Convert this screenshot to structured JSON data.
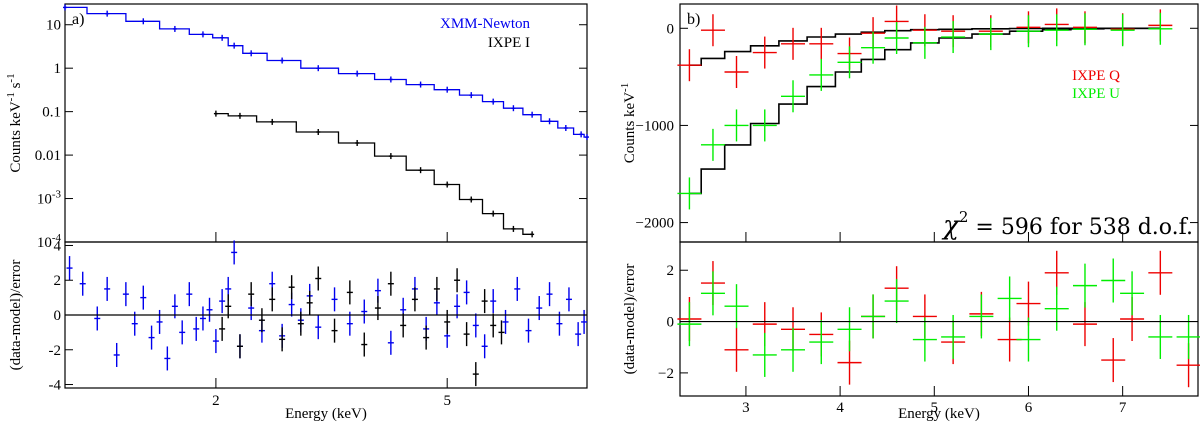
{
  "chart_data": [
    {
      "id": "a",
      "type": "line",
      "panel_label": "a)",
      "xscale": "log",
      "xlim": [
        1.1,
        8.7
      ],
      "xticks": [
        {
          "v": 2,
          "label": "2"
        },
        {
          "v": 5,
          "label": "5"
        }
      ],
      "xlabel": "Energy (keV)",
      "top": {
        "yscale": "log",
        "ylim": [
          0.0001,
          30
        ],
        "ylabel": "Counts keV-1 s-1",
        "yticks": [
          {
            "v": 10,
            "label": "10"
          },
          {
            "v": 1,
            "label": "1"
          },
          {
            "v": 0.1,
            "label": "0.1"
          },
          {
            "v": 0.01,
            "label": "0.01"
          },
          {
            "v": 0.001,
            "label": "10-3"
          },
          {
            "v": 0.0001,
            "label": "10-4"
          }
        ],
        "legend": [
          {
            "label": "XMM-Newton",
            "color": "#0000ee"
          },
          {
            "label": "IXPE I",
            "color": "#000000"
          }
        ],
        "series": [
          {
            "name": "XMM-Newton",
            "color": "#0000ee",
            "x": [
              1.1,
              1.3,
              1.5,
              1.7,
              1.9,
              2.05,
              2.15,
              2.3,
              2.6,
              3.0,
              3.5,
              4.0,
              4.5,
              5.0,
              5.5,
              6.0,
              6.5,
              7.0,
              7.5,
              8.0,
              8.5,
              8.7
            ],
            "y": [
              25,
              18,
              12,
              8,
              6,
              5.0,
              3.3,
              2.2,
              1.5,
              1.0,
              0.75,
              0.55,
              0.42,
              0.32,
              0.24,
              0.17,
              0.12,
              0.085,
              0.06,
              0.042,
              0.03,
              0.026
            ]
          },
          {
            "name": "IXPE I",
            "color": "#000000",
            "x": [
              2.0,
              2.2,
              2.5,
              3.0,
              3.5,
              4.0,
              4.5,
              5.0,
              5.5,
              6.0,
              6.5,
              7.0
            ],
            "y": [
              0.09,
              0.08,
              0.058,
              0.034,
              0.019,
              0.0095,
              0.0045,
              0.0021,
              0.00095,
              0.00045,
              0.0002,
              0.00015
            ]
          }
        ]
      },
      "bottom": {
        "ylim": [
          -4.2,
          4.2
        ],
        "ylabel": "(data-model)/error",
        "yticks": [
          {
            "v": 4,
            "label": "4"
          },
          {
            "v": 2,
            "label": "2"
          },
          {
            "v": 0,
            "label": "0"
          },
          {
            "v": -2,
            "label": "-2"
          },
          {
            "v": -4,
            "label": "-4"
          }
        ],
        "series": [
          {
            "name": "XMM-Newton residuals",
            "color": "#0000ee",
            "x": [
              1.12,
              1.18,
              1.25,
              1.3,
              1.35,
              1.4,
              1.45,
              1.5,
              1.55,
              1.6,
              1.65,
              1.7,
              1.75,
              1.8,
              1.85,
              1.9,
              1.95,
              2.0,
              2.05,
              2.1,
              2.15,
              2.2,
              2.3,
              2.4,
              2.5,
              2.6,
              2.7,
              2.8,
              2.9,
              3.0,
              3.2,
              3.4,
              3.6,
              3.8,
              4.0,
              4.2,
              4.4,
              4.6,
              4.8,
              5.0,
              5.2,
              5.4,
              5.6,
              5.8,
              6.0,
              6.3,
              6.6,
              6.9,
              7.2,
              7.5,
              7.8,
              8.1,
              8.4,
              8.6
            ],
            "y": [
              2.7,
              1.8,
              -0.2,
              1.5,
              -2.3,
              1.2,
              -0.5,
              1.0,
              -1.3,
              -0.4,
              -2.5,
              0.5,
              -1.0,
              1.2,
              -0.8,
              -0.2,
              0.3,
              -1.5,
              0.8,
              1.5,
              3.6,
              -1.8,
              0.4,
              -0.9,
              1.8,
              -1.2,
              0.6,
              -0.3,
              1.1,
              -0.7,
              0.9,
              -0.5,
              0.2,
              1.4,
              -1.6,
              0.3,
              1.5,
              -0.8,
              0.7,
              -1.2,
              0.5,
              1.3,
              -0.6,
              -1.8,
              0.8,
              -0.4,
              1.5,
              -0.9,
              0.4,
              1.2,
              -0.5,
              0.9,
              -1.1,
              -0.4
            ]
          },
          {
            "name": "IXPE I residuals",
            "color": "#000000",
            "x": [
              2.05,
              2.1,
              2.2,
              2.3,
              2.4,
              2.5,
              2.6,
              2.7,
              2.8,
              2.9,
              3.0,
              3.2,
              3.4,
              3.6,
              3.8,
              4.0,
              4.2,
              4.4,
              4.6,
              4.8,
              5.0,
              5.2,
              5.4,
              5.6,
              5.8,
              6.0,
              6.2
            ],
            "y": [
              -0.8,
              0.5,
              -1.8,
              1.2,
              -0.3,
              0.9,
              -1.4,
              1.6,
              -0.5,
              0.7,
              2.1,
              -0.9,
              1.3,
              -1.7,
              0.4,
              1.8,
              -0.6,
              0.9,
              -1.3,
              1.5,
              -0.4,
              2.0,
              -1.1,
              -3.4,
              0.8,
              -0.6,
              -1.0
            ]
          }
        ]
      }
    },
    {
      "id": "b",
      "type": "line",
      "panel_label": "b)",
      "xscale": "linear",
      "xlim": [
        2.3,
        7.8
      ],
      "xticks": [
        {
          "v": 3,
          "label": "3"
        },
        {
          "v": 4,
          "label": "4"
        },
        {
          "v": 5,
          "label": "5"
        },
        {
          "v": 6,
          "label": "6"
        },
        {
          "v": 7,
          "label": "7"
        }
      ],
      "xlabel": "Energy (keV)",
      "top": {
        "yscale": "linear",
        "ylim": [
          -2200,
          250
        ],
        "ylabel": "Counts keV-1",
        "yticks": [
          {
            "v": 0,
            "label": "0"
          },
          {
            "v": -1000,
            "label": "−1000"
          },
          {
            "v": -2000,
            "label": "−2000"
          }
        ],
        "legend": [
          {
            "label": "IXPE Q",
            "color": "#ee0000"
          },
          {
            "label": "IXPE U",
            "color": "#00ee00"
          }
        ],
        "annotation": {
          "symbol": "χ",
          "sup": "2",
          "text": " = 596 for 538 d.o.f."
        },
        "series": [
          {
            "name": "IXPE Q",
            "color": "#ee0000",
            "x": [
              2.4,
              2.65,
              2.9,
              3.2,
              3.5,
              3.8,
              4.1,
              4.35,
              4.6,
              4.9,
              5.2,
              5.6,
              6.0,
              6.3,
              6.6,
              7.0,
              7.4
            ],
            "y": [
              -380,
              -20,
              -450,
              -250,
              -160,
              -160,
              -260,
              -50,
              70,
              -20,
              -30,
              -30,
              10,
              40,
              10,
              -10,
              30
            ],
            "model": [
              -380,
              -310,
              -240,
              -180,
              -130,
              -90,
              -60,
              -40,
              -25,
              -15,
              -10,
              -5,
              -2,
              0,
              0,
              0,
              0
            ]
          },
          {
            "name": "IXPE U",
            "color": "#00ee00",
            "x": [
              2.4,
              2.65,
              2.9,
              3.2,
              3.5,
              3.8,
              4.1,
              4.35,
              4.6,
              4.9,
              5.2,
              5.6,
              6.0,
              6.3,
              6.6,
              7.0,
              7.4
            ],
            "y": [
              -1700,
              -1200,
              -1000,
              -1000,
              -700,
              -480,
              -350,
              -200,
              -100,
              -150,
              -90,
              -60,
              -30,
              -20,
              -10,
              -20,
              -5
            ],
            "model": [
              -1700,
              -1450,
              -1200,
              -980,
              -780,
              -600,
              -450,
              -320,
              -220,
              -150,
              -100,
              -60,
              -30,
              -15,
              -5,
              0,
              0
            ]
          }
        ]
      },
      "bottom": {
        "ylim": [
          -2.9,
          3.1
        ],
        "ylabel": "(data-model)/error",
        "yticks": [
          {
            "v": 2,
            "label": "2"
          },
          {
            "v": 0,
            "label": "0"
          },
          {
            "v": -2,
            "label": "−2"
          }
        ],
        "series": [
          {
            "name": "IXPE Q residuals",
            "color": "#ee0000",
            "x": [
              2.4,
              2.65,
              2.9,
              3.2,
              3.5,
              3.8,
              4.1,
              4.35,
              4.6,
              4.9,
              5.2,
              5.5,
              5.8,
              6.0,
              6.3,
              6.6,
              6.9,
              7.1,
              7.4,
              7.7
            ],
            "y": [
              0.1,
              1.5,
              -1.1,
              -0.1,
              -0.3,
              -0.5,
              -1.6,
              0.2,
              1.3,
              0.2,
              -0.8,
              0.3,
              -0.7,
              0.7,
              1.9,
              -0.1,
              -1.5,
              0.1,
              1.9,
              -1.7
            ]
          },
          {
            "name": "IXPE U residuals",
            "color": "#00ee00",
            "x": [
              2.4,
              2.65,
              2.9,
              3.2,
              3.5,
              3.8,
              4.1,
              4.35,
              4.6,
              4.9,
              5.2,
              5.5,
              5.8,
              6.0,
              6.3,
              6.6,
              6.9,
              7.1,
              7.4,
              7.7
            ],
            "y": [
              -0.1,
              1.1,
              0.6,
              -1.3,
              -1.1,
              -0.8,
              -0.3,
              0.2,
              0.8,
              -0.7,
              -0.6,
              0.2,
              0.9,
              -0.7,
              0.5,
              1.4,
              1.6,
              1.1,
              -0.6,
              -0.6
            ]
          }
        ]
      }
    }
  ]
}
